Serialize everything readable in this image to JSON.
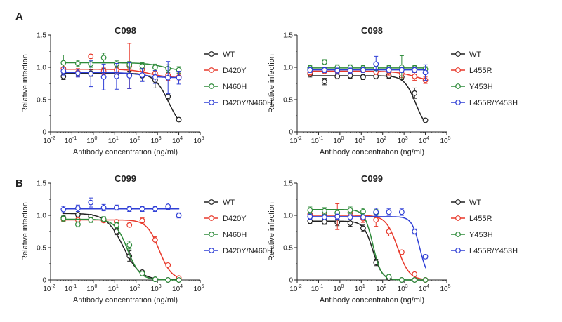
{
  "panel_labels": [
    "A",
    "B"
  ],
  "colors": {
    "WT": "#222222",
    "red": "#e8392b",
    "green": "#2e8b3a",
    "blue": "#2f3fd6"
  },
  "chart_data": [
    {
      "id": "A1",
      "type": "line",
      "panel": "A",
      "title": "C098",
      "xlabel": "Antibody concentration (ng/ml)",
      "ylabel": "Relative infection",
      "xscale": "log",
      "xlim_exp": [
        -2,
        5
      ],
      "ylim": [
        0,
        1.5
      ],
      "yticks": [
        "0",
        "0.5",
        "1.0",
        "1.5"
      ],
      "xticks": [
        {
          "base": "10",
          "exp": "-2"
        },
        {
          "base": "10",
          "exp": "-1"
        },
        {
          "base": "10",
          "exp": "0"
        },
        {
          "base": "10",
          "exp": "1"
        },
        {
          "base": "10",
          "exp": "2"
        },
        {
          "base": "10",
          "exp": "3"
        },
        {
          "base": "10",
          "exp": "4"
        },
        {
          "base": "10",
          "exp": "5"
        }
      ],
      "legend": "right",
      "x": [
        0.04,
        0.19,
        0.76,
        3.05,
        12.2,
        48.8,
        195,
        781,
        3125,
        10000
      ],
      "series": [
        {
          "name": "WT",
          "color": "#222222",
          "y": [
            0.86,
            0.92,
            0.91,
            0.92,
            0.91,
            0.88,
            0.87,
            0.8,
            0.55,
            0.19
          ],
          "err": [
            0.05,
            0.05,
            0.05,
            0.06,
            0.06,
            0.06,
            0.08,
            0.12,
            0.04,
            0.03
          ],
          "fit": {
            "top": 0.91,
            "bottom": 0,
            "ec50": 3400,
            "hill": 1.3
          }
        },
        {
          "name": "D420Y",
          "color": "#e8392b",
          "y": [
            0.98,
            0.92,
            1.17,
            0.94,
            0.96,
            1.02,
            0.97,
            0.91,
            0.88,
            0.85
          ],
          "err": [
            0.06,
            0.06,
            0.03,
            0.05,
            0.05,
            0.35,
            0.08,
            0.08,
            0.08,
            0.06
          ],
          "fit": {
            "top": 0.97,
            "bottom": 0.84,
            "ec50": 400,
            "hill": 1.0
          }
        },
        {
          "name": "N460H",
          "color": "#2e8b3a",
          "y": [
            1.07,
            1.06,
            1.05,
            1.15,
            1.05,
            1.04,
            1.02,
            1.0,
            0.98,
            0.96
          ],
          "err": [
            0.12,
            0.05,
            0.05,
            0.07,
            0.05,
            0.05,
            0.05,
            0.05,
            0.06,
            0.05
          ],
          "fit": {
            "top": 1.07,
            "bottom": 0.94,
            "ec50": 2000,
            "hill": 1.0
          }
        },
        {
          "name": "D420Y/N460H",
          "color": "#2f3fd6",
          "y": [
            0.94,
            0.91,
            0.9,
            0.85,
            0.86,
            0.87,
            0.88,
            0.85,
            0.84,
            0.84
          ],
          "err": [
            0.06,
            0.06,
            0.2,
            0.2,
            0.2,
            0.2,
            0.1,
            0.1,
            0.25,
            0.1
          ],
          "fit": {
            "top": 0.92,
            "bottom": 0.84,
            "ec50": 200,
            "hill": 1.0
          }
        }
      ]
    },
    {
      "id": "A2",
      "type": "line",
      "panel": "A",
      "title": "C098",
      "xlabel": "Antibody concentration (ng/ml)",
      "ylabel": "Relative infection",
      "xscale": "log",
      "xlim_exp": [
        -2,
        5
      ],
      "ylim": [
        0,
        1.5
      ],
      "yticks": [
        "0",
        "0.5",
        "1.0",
        "1.5"
      ],
      "xticks": [
        {
          "base": "10",
          "exp": "-2"
        },
        {
          "base": "10",
          "exp": "-1"
        },
        {
          "base": "10",
          "exp": "0"
        },
        {
          "base": "10",
          "exp": "1"
        },
        {
          "base": "10",
          "exp": "2"
        },
        {
          "base": "10",
          "exp": "3"
        },
        {
          "base": "10",
          "exp": "4"
        },
        {
          "base": "10",
          "exp": "5"
        }
      ],
      "legend": "right",
      "x": [
        0.04,
        0.19,
        0.76,
        3.05,
        12.2,
        48.8,
        195,
        781,
        3125,
        10000
      ],
      "series": [
        {
          "name": "WT",
          "color": "#222222",
          "y": [
            0.9,
            0.78,
            0.86,
            0.87,
            0.85,
            0.86,
            0.87,
            0.85,
            0.6,
            0.18
          ],
          "err": [
            0.05,
            0.05,
            0.04,
            0.04,
            0.04,
            0.04,
            0.04,
            0.04,
            0.08,
            0.02
          ],
          "fit": {
            "top": 0.87,
            "bottom": 0,
            "ec50": 3600,
            "hill": 1.6
          }
        },
        {
          "name": "L455R",
          "color": "#e8392b",
          "y": [
            0.92,
            0.94,
            0.94,
            0.95,
            0.96,
            0.93,
            0.94,
            0.9,
            0.86,
            0.8
          ],
          "err": [
            0.04,
            0.04,
            0.04,
            0.04,
            0.04,
            0.04,
            0.06,
            0.06,
            0.06,
            0.05
          ],
          "fit": {
            "top": 0.94,
            "bottom": 0.78,
            "ec50": 3000,
            "hill": 1.0
          }
        },
        {
          "name": "Y453H",
          "color": "#2e8b3a",
          "y": [
            0.99,
            1.08,
            1.0,
            1.0,
            0.99,
            0.99,
            0.99,
            1.0,
            0.99,
            0.97
          ],
          "err": [
            0.04,
            0.04,
            0.04,
            0.04,
            0.04,
            0.04,
            0.04,
            0.18,
            0.04,
            0.04
          ],
          "fit": {
            "top": 0.99,
            "bottom": 0.99,
            "ec50": 100,
            "hill": 1.0
          }
        },
        {
          "name": "L455R/Y453H",
          "color": "#2f3fd6",
          "y": [
            0.96,
            0.96,
            0.95,
            0.95,
            0.96,
            1.05,
            0.96,
            0.96,
            0.96,
            0.92
          ],
          "err": [
            0.04,
            0.04,
            0.04,
            0.04,
            0.04,
            0.12,
            0.04,
            0.04,
            0.04,
            0.12
          ],
          "fit": {
            "top": 0.96,
            "bottom": 0.96,
            "ec50": 100,
            "hill": 1.0
          }
        }
      ]
    },
    {
      "id": "B1",
      "type": "line",
      "panel": "B",
      "title": "C099",
      "xlabel": "Antibody concentration (ng/ml)",
      "ylabel": "Relative infection",
      "xscale": "log",
      "xlim_exp": [
        -2,
        5
      ],
      "ylim": [
        0,
        1.5
      ],
      "yticks": [
        "0",
        "0.5",
        "1.0",
        "1.5"
      ],
      "xticks": [
        {
          "base": "10",
          "exp": "-2"
        },
        {
          "base": "10",
          "exp": "-1"
        },
        {
          "base": "10",
          "exp": "0"
        },
        {
          "base": "10",
          "exp": "1"
        },
        {
          "base": "10",
          "exp": "2"
        },
        {
          "base": "10",
          "exp": "3"
        },
        {
          "base": "10",
          "exp": "4"
        },
        {
          "base": "10",
          "exp": "5"
        }
      ],
      "legend": "right",
      "x": [
        0.04,
        0.19,
        0.76,
        3.05,
        12.2,
        48.8,
        195,
        781,
        3125,
        10000
      ],
      "series": [
        {
          "name": "WT",
          "color": "#222222",
          "y": [
            0.96,
            1.01,
            0.98,
            0.93,
            0.75,
            0.37,
            0.12,
            0.01,
            0.0,
            0.0
          ],
          "err": [
            0.03,
            0.03,
            0.03,
            0.03,
            0.05,
            0.08,
            0.02,
            0.01,
            0.0,
            0.0
          ],
          "fit": {
            "top": 1.03,
            "bottom": 0,
            "ec50": 25,
            "hill": 1.1
          }
        },
        {
          "name": "D420Y",
          "color": "#e8392b",
          "y": [
            0.94,
            0.93,
            0.93,
            0.92,
            0.9,
            0.85,
            0.92,
            0.62,
            0.23,
            0.03
          ],
          "err": [
            0.03,
            0.03,
            0.03,
            0.03,
            0.03,
            0.03,
            0.04,
            0.05,
            0.02,
            0.01
          ],
          "fit": {
            "top": 0.93,
            "bottom": 0,
            "ec50": 1200,
            "hill": 1.5
          }
        },
        {
          "name": "N460H",
          "color": "#2e8b3a",
          "y": [
            0.95,
            0.86,
            0.93,
            0.94,
            0.85,
            0.54,
            0.1,
            0.01,
            0.0,
            0.0
          ],
          "err": [
            0.04,
            0.04,
            0.04,
            0.04,
            0.04,
            0.06,
            0.02,
            0.01,
            0.0,
            0.0
          ],
          "fit": {
            "top": 0.94,
            "bottom": 0,
            "ec50": 40,
            "hill": 1.5
          }
        },
        {
          "name": "D420Y/N460H",
          "color": "#2f3fd6",
          "y": [
            1.09,
            1.11,
            1.2,
            1.12,
            1.12,
            1.1,
            1.1,
            1.1,
            1.14,
            1.0
          ],
          "err": [
            0.05,
            0.05,
            0.07,
            0.05,
            0.04,
            0.04,
            0.04,
            0.04,
            0.05,
            0.04
          ],
          "fit": {
            "top": 1.1,
            "bottom": 1.1,
            "ec50": 100,
            "hill": 1.0
          }
        }
      ]
    },
    {
      "id": "B2",
      "type": "line",
      "panel": "B",
      "title": "C099",
      "xlabel": "Antibody concentration (ng/ml)",
      "ylabel": "Relative infection",
      "xscale": "log",
      "xlim_exp": [
        -2,
        5
      ],
      "ylim": [
        0,
        1.5
      ],
      "yticks": [
        "0",
        "0.5",
        "1.0",
        "1.5"
      ],
      "xticks": [
        {
          "base": "10",
          "exp": "-2"
        },
        {
          "base": "10",
          "exp": "-1"
        },
        {
          "base": "10",
          "exp": "0"
        },
        {
          "base": "10",
          "exp": "1"
        },
        {
          "base": "10",
          "exp": "2"
        },
        {
          "base": "10",
          "exp": "3"
        },
        {
          "base": "10",
          "exp": "4"
        },
        {
          "base": "10",
          "exp": "5"
        }
      ],
      "legend": "right",
      "x": [
        0.04,
        0.19,
        0.76,
        3.05,
        12.2,
        48.8,
        195,
        781,
        3125,
        10000
      ],
      "series": [
        {
          "name": "WT",
          "color": "#222222",
          "y": [
            0.91,
            0.9,
            0.89,
            0.88,
            0.8,
            0.27,
            0.03,
            0.0,
            0.0,
            0.0
          ],
          "err": [
            0.04,
            0.04,
            0.05,
            0.05,
            0.05,
            0.05,
            0.02,
            0.0,
            0.0,
            0.0
          ],
          "fit": {
            "top": 0.91,
            "bottom": 0,
            "ec50": 35,
            "hill": 2.0
          }
        },
        {
          "name": "L455R",
          "color": "#e8392b",
          "y": [
            1.02,
            1.01,
            0.98,
            1.04,
            0.95,
            0.93,
            0.75,
            0.43,
            0.09,
            0.0
          ],
          "err": [
            0.05,
            0.05,
            0.2,
            0.06,
            0.06,
            0.1,
            0.07,
            0.03,
            0.02,
            0.0
          ],
          "fit": {
            "top": 1.0,
            "bottom": 0,
            "ec50": 500,
            "hill": 1.6
          }
        },
        {
          "name": "Y453H",
          "color": "#2e8b3a",
          "y": [
            1.08,
            1.07,
            1.04,
            1.08,
            1.06,
            1.04,
            0.05,
            0.0,
            0.0,
            0.0
          ],
          "err": [
            0.05,
            0.05,
            0.05,
            0.05,
            0.05,
            0.05,
            0.02,
            0.0,
            0.0,
            0.0
          ],
          "fit": {
            "top": 1.09,
            "bottom": 0,
            "ec50": 35,
            "hill": 2.2
          }
        },
        {
          "name": "L455R/Y453H",
          "color": "#2f3fd6",
          "y": [
            0.98,
            0.97,
            0.98,
            0.97,
            0.97,
            1.05,
            1.05,
            1.05,
            0.75,
            0.36
          ],
          "err": [
            0.04,
            0.04,
            0.04,
            0.04,
            0.04,
            0.06,
            0.05,
            0.05,
            0.04,
            0.03
          ],
          "fit": {
            "top": 0.98,
            "bottom": 0,
            "ec50": 5500,
            "hill": 2.3
          }
        }
      ]
    }
  ]
}
